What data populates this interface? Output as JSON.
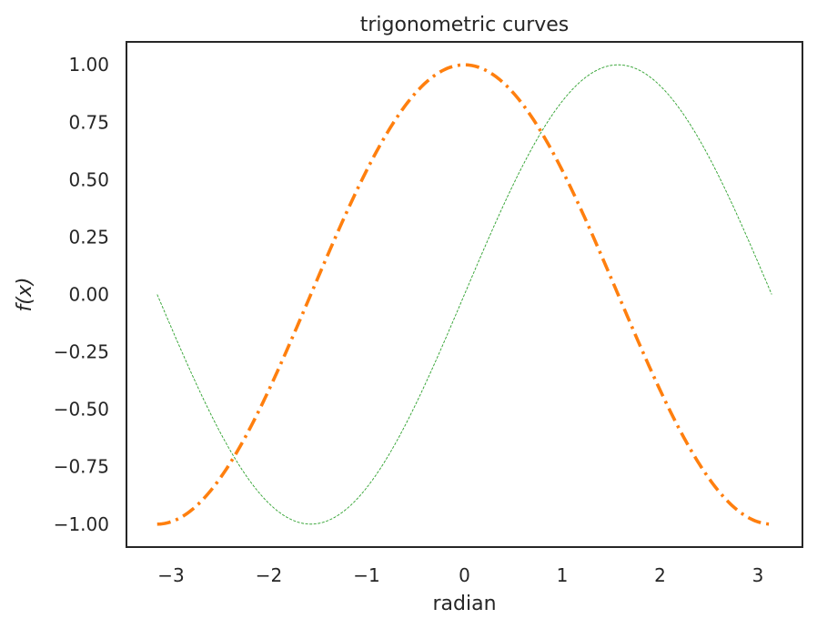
{
  "chart_data": {
    "type": "line",
    "title": "trigonometric curves",
    "xlabel": "radian",
    "ylabel": "f(x)",
    "xlim": [
      -3.4557,
      3.4557
    ],
    "ylim": [
      -1.1,
      1.1
    ],
    "grid": false,
    "legend": "none",
    "x_ticks": [
      -3,
      -2,
      -1,
      0,
      1,
      2,
      3
    ],
    "x_tick_labels": [
      "−3",
      "−2",
      "−1",
      "0",
      "1",
      "2",
      "3"
    ],
    "y_ticks": [
      -1.0,
      -0.75,
      -0.5,
      -0.25,
      0.0,
      0.25,
      0.5,
      0.75,
      1.0
    ],
    "y_tick_labels": [
      "−1.00",
      "−0.75",
      "−0.50",
      "−0.25",
      "0.00",
      "0.25",
      "0.50",
      "0.75",
      "1.00"
    ],
    "x_range": [
      -3.14159,
      3.14159
    ],
    "series": [
      {
        "function": "sin",
        "color": "#2ca02c",
        "line_style": "dashed",
        "x": [
          -3.1416,
          -2.7489,
          -2.3562,
          -1.9635,
          -1.5708,
          -1.1781,
          -0.7854,
          -0.3927,
          0.0,
          0.3927,
          0.7854,
          1.1781,
          1.5708,
          1.9635,
          2.3562,
          2.7489,
          3.1416
        ],
        "y": [
          0.0,
          -0.3827,
          -0.7071,
          -0.9239,
          -1.0,
          -0.9239,
          -0.7071,
          -0.3827,
          0.0,
          0.3827,
          0.7071,
          0.9239,
          1.0,
          0.9239,
          0.7071,
          0.3827,
          0.0
        ]
      },
      {
        "function": "cos",
        "color": "#ff7f0e",
        "line_style": "dash-dot",
        "x": [
          -3.1416,
          -2.7489,
          -2.3562,
          -1.9635,
          -1.5708,
          -1.1781,
          -0.7854,
          -0.3927,
          0.0,
          0.3927,
          0.7854,
          1.1781,
          1.5708,
          1.9635,
          2.3562,
          2.7489,
          3.1416
        ],
        "y": [
          -1.0,
          -0.9239,
          -0.7071,
          -0.3827,
          0.0,
          0.3827,
          0.7071,
          0.9239,
          1.0,
          0.9239,
          0.7071,
          0.3827,
          0.0,
          -0.3827,
          -0.7071,
          -0.9239,
          -1.0
        ]
      }
    ]
  }
}
